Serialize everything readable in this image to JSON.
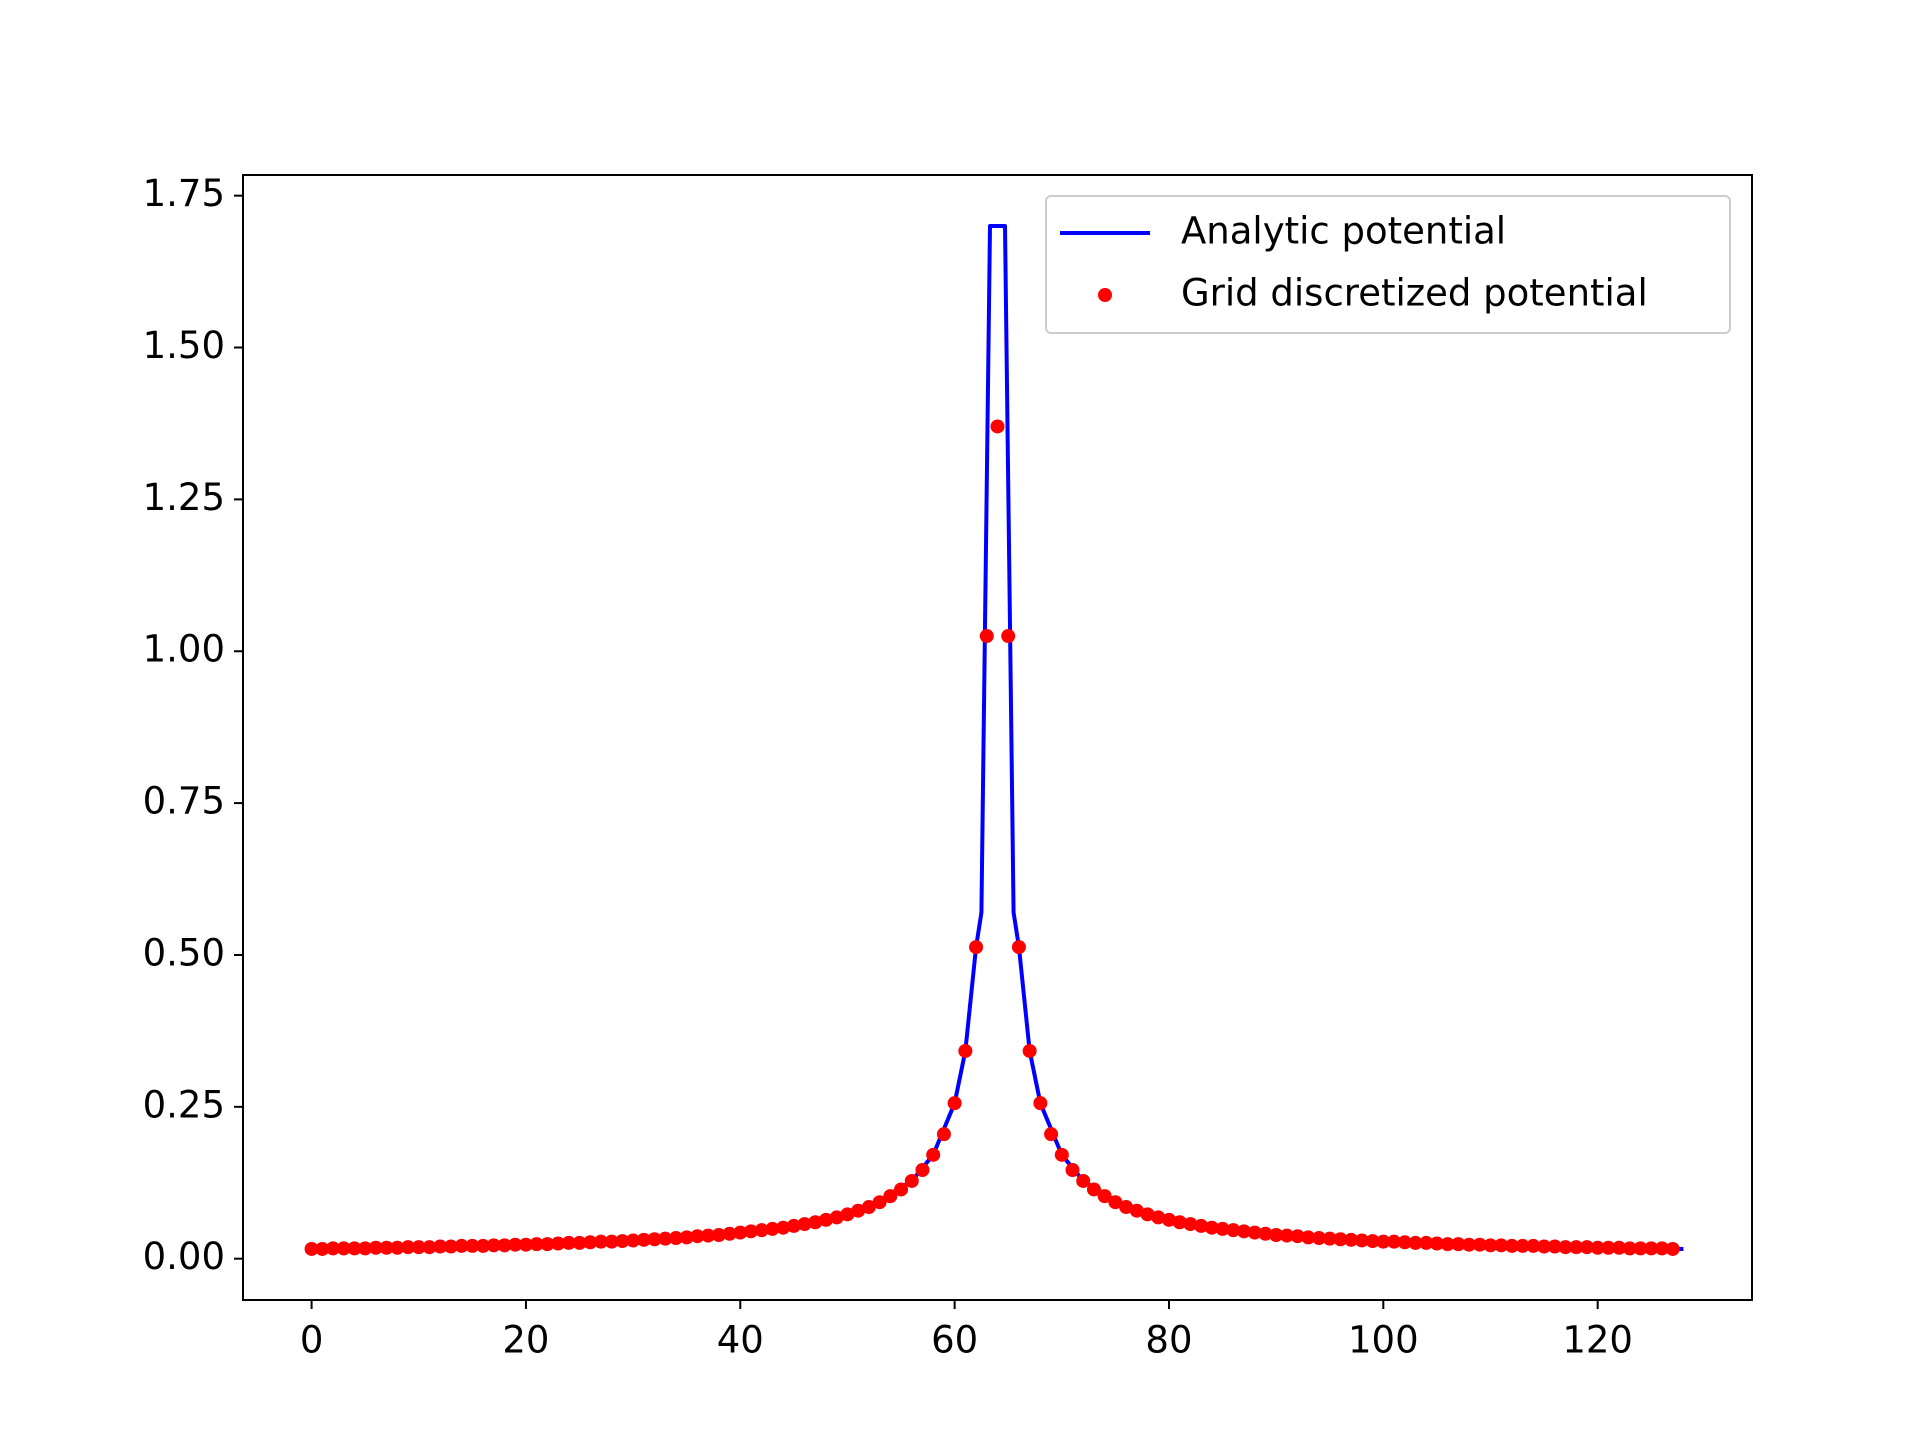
{
  "chart_data": {
    "type": "line",
    "xlim": [
      -6.4,
      134.4
    ],
    "ylim": [
      -0.068,
      1.784
    ],
    "xticks": [
      0,
      20,
      40,
      60,
      80,
      100,
      120
    ],
    "yticks": [
      {
        "value": 0,
        "label": "0.00"
      },
      0.25,
      {
        "value": 0.5,
        "label": "0.50"
      },
      0.75,
      {
        "value": 1,
        "label": "1.00"
      },
      1.25,
      {
        "value": 1.5,
        "label": "1.50"
      },
      1.75
    ],
    "legend": "upper right",
    "series": [
      {
        "name": "Analytic potential",
        "color": "#0000ff",
        "mode": "line",
        "x": [
          0,
          4,
          8,
          12,
          16,
          20,
          24,
          28,
          32,
          36,
          40,
          44,
          48,
          52,
          56,
          58,
          60,
          61,
          62,
          62.5,
          63.3,
          64.7,
          65.5,
          66,
          67,
          68,
          70,
          72,
          76,
          80,
          84,
          88,
          92,
          96,
          100,
          104,
          108,
          112,
          116,
          120,
          124,
          128
        ],
        "values": [
          0.016,
          0.017,
          0.018,
          0.02,
          0.021,
          0.023,
          0.026,
          0.028,
          0.032,
          0.037,
          0.043,
          0.051,
          0.064,
          0.085,
          0.128,
          0.171,
          0.256,
          0.342,
          0.513,
          0.57,
          1.7,
          1.7,
          0.57,
          0.513,
          0.342,
          0.256,
          0.171,
          0.128,
          0.085,
          0.064,
          0.051,
          0.043,
          0.037,
          0.032,
          0.028,
          0.026,
          0.023,
          0.021,
          0.02,
          0.018,
          0.017,
          0.016
        ]
      },
      {
        "name": "Grid discretized potential",
        "color": "#ff0000",
        "mode": "markers",
        "x": [
          0,
          1,
          2,
          3,
          4,
          5,
          6,
          7,
          8,
          9,
          10,
          11,
          12,
          13,
          14,
          15,
          16,
          17,
          18,
          19,
          20,
          21,
          22,
          23,
          24,
          25,
          26,
          27,
          28,
          29,
          30,
          31,
          32,
          33,
          34,
          35,
          36,
          37,
          38,
          39,
          40,
          41,
          42,
          43,
          44,
          45,
          46,
          47,
          48,
          49,
          50,
          51,
          52,
          53,
          54,
          55,
          56,
          57,
          58,
          59,
          60,
          61,
          62,
          63,
          64,
          65,
          66,
          67,
          68,
          69,
          70,
          71,
          72,
          73,
          74,
          75,
          76,
          77,
          78,
          79,
          80,
          81,
          82,
          83,
          84,
          85,
          86,
          87,
          88,
          89,
          90,
          91,
          92,
          93,
          94,
          95,
          96,
          97,
          98,
          99,
          100,
          101,
          102,
          103,
          104,
          105,
          106,
          107,
          108,
          109,
          110,
          111,
          112,
          113,
          114,
          115,
          116,
          117,
          118,
          119,
          120,
          121,
          122,
          123,
          124,
          125,
          126,
          127
        ],
        "values": [
          0.016,
          0.016,
          0.017,
          0.017,
          0.017,
          0.017,
          0.018,
          0.018,
          0.018,
          0.019,
          0.019,
          0.019,
          0.02,
          0.02,
          0.021,
          0.021,
          0.021,
          0.022,
          0.022,
          0.023,
          0.023,
          0.024,
          0.024,
          0.025,
          0.026,
          0.026,
          0.027,
          0.028,
          0.028,
          0.029,
          0.03,
          0.031,
          0.032,
          0.033,
          0.034,
          0.035,
          0.037,
          0.038,
          0.039,
          0.041,
          0.043,
          0.045,
          0.047,
          0.049,
          0.051,
          0.054,
          0.057,
          0.06,
          0.064,
          0.068,
          0.073,
          0.079,
          0.085,
          0.093,
          0.103,
          0.114,
          0.128,
          0.146,
          0.171,
          0.205,
          0.256,
          0.342,
          0.513,
          1.025,
          1.37,
          1.025,
          0.513,
          0.342,
          0.256,
          0.205,
          0.171,
          0.146,
          0.128,
          0.114,
          0.103,
          0.093,
          0.085,
          0.079,
          0.073,
          0.068,
          0.064,
          0.06,
          0.057,
          0.054,
          0.051,
          0.049,
          0.047,
          0.045,
          0.043,
          0.041,
          0.039,
          0.038,
          0.037,
          0.035,
          0.034,
          0.033,
          0.032,
          0.031,
          0.03,
          0.029,
          0.028,
          0.028,
          0.027,
          0.026,
          0.026,
          0.025,
          0.024,
          0.024,
          0.023,
          0.023,
          0.022,
          0.022,
          0.021,
          0.021,
          0.021,
          0.02,
          0.02,
          0.019,
          0.019,
          0.019,
          0.018,
          0.018,
          0.018,
          0.017,
          0.017,
          0.017,
          0.017,
          0.016
        ]
      }
    ]
  }
}
